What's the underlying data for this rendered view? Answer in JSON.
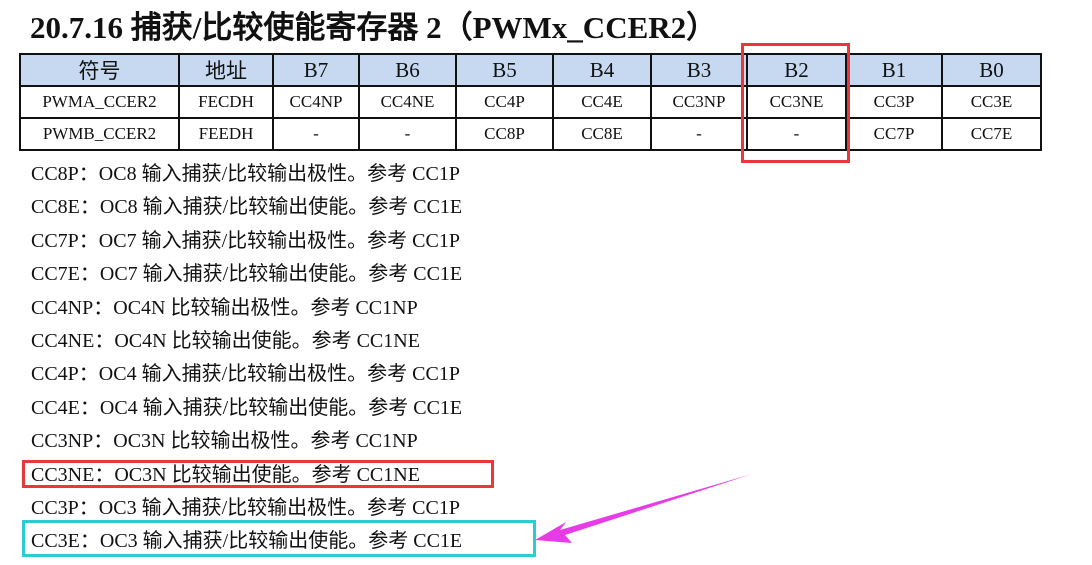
{
  "title": "20.7.16  捕获/比较使能寄存器 2（PWMx_CCER2）",
  "table": {
    "headers": [
      "符号",
      "地址",
      "B7",
      "B6",
      "B5",
      "B4",
      "B3",
      "B2",
      "B1",
      "B0"
    ],
    "rows": [
      [
        "PWMA_CCER2",
        "FECDH",
        "CC4NP",
        "CC4NE",
        "CC4P",
        "CC4E",
        "CC3NP",
        "CC3NE",
        "CC3P",
        "CC3E"
      ],
      [
        "PWMB_CCER2",
        "FEEDH",
        "-",
        "-",
        "CC8P",
        "CC8E",
        "-",
        "-",
        "CC7P",
        "CC7E"
      ]
    ]
  },
  "lines": [
    "CC8P：OC8 输入捕获/比较输出极性。参考 CC1P",
    "CC8E：OC8 输入捕获/比较输出使能。参考 CC1E",
    "CC7P：OC7 输入捕获/比较输出极性。参考 CC1P",
    "CC7E：OC7 输入捕获/比较输出使能。参考 CC1E",
    "CC4NP：OC4N 比较输出极性。参考 CC1NP",
    "CC4NE：OC4N 比较输出使能。参考 CC1NE",
    "CC4P：OC4 输入捕获/比较输出极性。参考 CC1P",
    "CC4E：OC4 输入捕获/比较输出使能。参考 CC1E",
    "CC3NP：OC3N 比较输出极性。参考 CC1NP",
    "CC3NE：OC3N 比较输出使能。参考 CC1NE",
    "CC3P：OC3 输入捕获/比较输出极性。参考 CC1P",
    "CC3E：OC3 输入捕获/比较输出使能。参考 CC1E"
  ],
  "colors": {
    "highlight_red": "#e8383b",
    "highlight_cyan": "#2ccdd2",
    "arrow": "#e83be8",
    "header_bg": "#c6d9f1"
  }
}
